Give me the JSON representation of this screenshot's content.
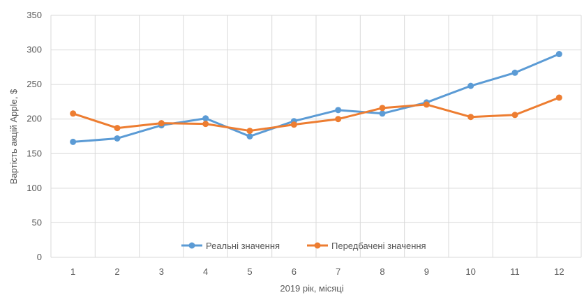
{
  "chart_data": {
    "type": "line",
    "title": "",
    "xlabel": "2019 рік, місяці",
    "ylabel": "Вартість акцій Apple, $",
    "categories": [
      "1",
      "2",
      "3",
      "4",
      "5",
      "6",
      "7",
      "8",
      "9",
      "10",
      "11",
      "12"
    ],
    "ylim": [
      0,
      350
    ],
    "yticks": [
      0,
      50,
      100,
      150,
      200,
      250,
      300,
      350
    ],
    "grid": true,
    "legend_position": "bottom-inside",
    "series": [
      {
        "name": "Реальні значення",
        "color": "#5B9BD5",
        "values": [
          167,
          172,
          191,
          201,
          175,
          197,
          213,
          208,
          224,
          248,
          267,
          294
        ]
      },
      {
        "name": "Передбачені значення",
        "color": "#ED7D31",
        "values": [
          208,
          187,
          194,
          193,
          183,
          192,
          200,
          216,
          221,
          203,
          206,
          231
        ]
      }
    ]
  }
}
